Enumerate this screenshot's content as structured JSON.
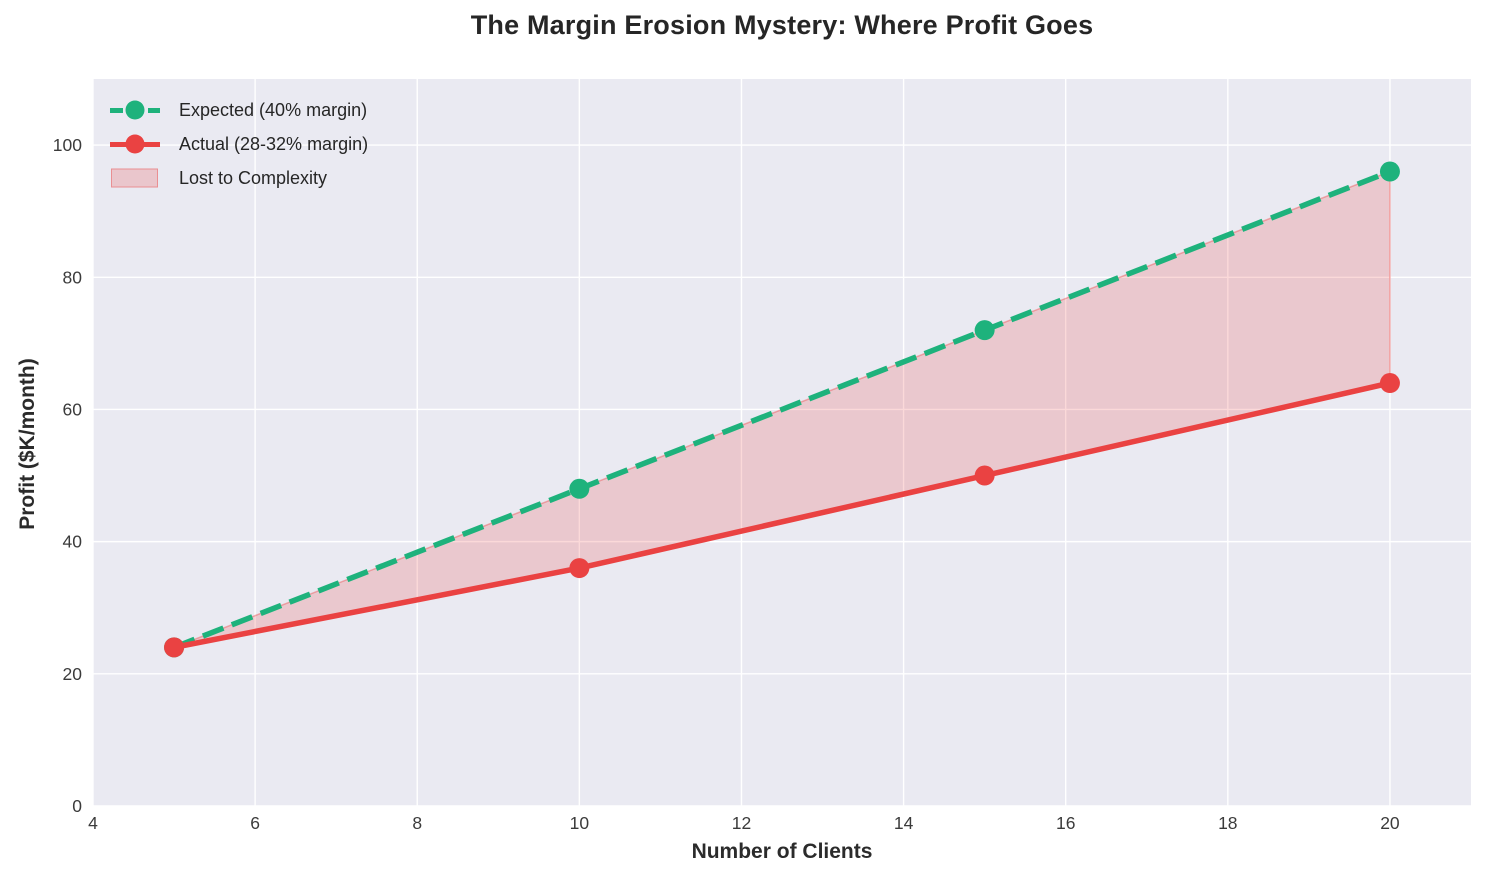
{
  "chart_data": {
    "type": "line",
    "title": "The Margin Erosion Mystery: Where Profit Goes",
    "xlabel": "Number of Clients",
    "ylabel": "Profit ($K/month)",
    "x": [
      5,
      10,
      15,
      20
    ],
    "series": [
      {
        "name": "Expected (40% margin)",
        "values": [
          24,
          48,
          72,
          96
        ],
        "color": "#1eb27c",
        "style": "dashed",
        "marker": "circle"
      },
      {
        "name": "Actual (28-32% margin)",
        "values": [
          24,
          36,
          50,
          64
        ],
        "color": "#ea4242",
        "style": "solid",
        "marker": "circle"
      }
    ],
    "fill_between": {
      "name": "Lost to Complexity",
      "between": [
        "Expected (40% margin)",
        "Actual (28-32% margin)"
      ],
      "color": "#ea4242",
      "opacity": 0.2,
      "edge_opacity": 0.4
    },
    "xlim": [
      4,
      21
    ],
    "ylim": [
      0,
      110
    ],
    "xticks": [
      4,
      6,
      8,
      10,
      12,
      14,
      16,
      18,
      20
    ],
    "yticks": [
      0,
      20,
      40,
      60,
      80,
      100
    ],
    "grid": true,
    "grid_color": "#ffffff",
    "plot_bg": "#eaeaf2",
    "legend_position": "upper left",
    "tick_color": "#3b3b3b"
  },
  "legend": {
    "items": [
      {
        "label": "Expected (40% margin)",
        "swatch": "dashed-line-with-marker",
        "color": "#1eb27c"
      },
      {
        "label": "Actual (28-32% margin)",
        "swatch": "solid-line-with-marker",
        "color": "#ea4242"
      },
      {
        "label": "Lost to Complexity",
        "swatch": "filled-patch",
        "color": "#ea4242"
      }
    ]
  }
}
